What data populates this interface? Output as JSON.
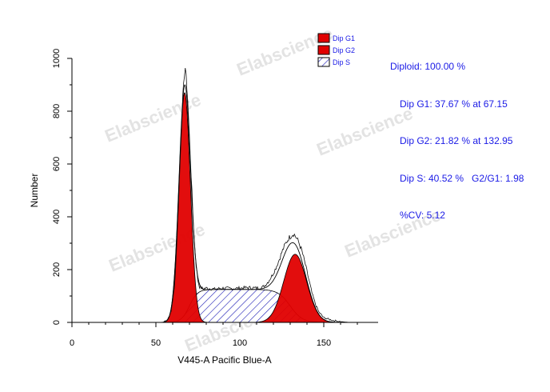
{
  "watermark": "Elabscience",
  "stats": {
    "diploid": "Diploid: 100.00 %",
    "g1": "Dip G1: 37.67 % at 67.15",
    "g2": "Dip G2: 21.82 % at 132.95",
    "s": "Dip S: 40.52 %   G2/G1: 1.98",
    "cv": "%CV: 5.12"
  },
  "colors": {
    "g1": "#e00000",
    "g2": "#e00000",
    "s_hatch": "#1a1ab4",
    "text": "#1a1ae6"
  },
  "chart_data": {
    "type": "area",
    "xlabel": "V445-A Pacific Blue-A",
    "ylabel": "Number",
    "xlim": [
      0,
      180
    ],
    "ylim": [
      0,
      1000
    ],
    "xticks": [
      0,
      50,
      100,
      150
    ],
    "yticks": [
      0,
      200,
      400,
      600,
      800,
      1000
    ],
    "legend": [
      {
        "name": "Dip G1",
        "style": "solid-red"
      },
      {
        "name": "Dip G2",
        "style": "solid-red"
      },
      {
        "name": "Dip S",
        "style": "hatched-blue"
      }
    ],
    "legend_position": "top-right",
    "models": {
      "g1": {
        "mean": 67.15,
        "sd": 3.4,
        "peak": 870
      },
      "g2": {
        "mean": 132.95,
        "sd": 6.8,
        "peak": 258
      },
      "s": {
        "from": 70.0,
        "to": 130.0,
        "height": 125
      }
    },
    "histogram": [
      [
        55,
        4
      ],
      [
        57,
        12
      ],
      [
        59,
        40
      ],
      [
        61,
        130
      ],
      [
        62,
        240
      ],
      [
        63,
        380
      ],
      [
        64,
        540
      ],
      [
        65,
        700
      ],
      [
        66,
        850
      ],
      [
        67,
        940
      ],
      [
        67.5,
        965
      ],
      [
        68,
        930
      ],
      [
        69,
        840
      ],
      [
        70,
        700
      ],
      [
        71,
        560
      ],
      [
        72,
        420
      ],
      [
        73,
        300
      ],
      [
        74,
        215
      ],
      [
        75,
        160
      ],
      [
        76,
        135
      ],
      [
        78,
        128
      ],
      [
        80,
        130
      ],
      [
        85,
        126
      ],
      [
        90,
        130
      ],
      [
        95,
        128
      ],
      [
        100,
        130
      ],
      [
        105,
        132
      ],
      [
        110,
        130
      ],
      [
        113,
        132
      ],
      [
        115,
        140
      ],
      [
        117,
        155
      ],
      [
        119,
        175
      ],
      [
        121,
        200
      ],
      [
        123,
        230
      ],
      [
        125,
        265
      ],
      [
        127,
        295
      ],
      [
        129,
        318
      ],
      [
        131,
        332
      ],
      [
        132,
        336
      ],
      [
        133,
        328
      ],
      [
        135,
        305
      ],
      [
        137,
        270
      ],
      [
        139,
        220
      ],
      [
        141,
        165
      ],
      [
        143,
        110
      ],
      [
        145,
        70
      ],
      [
        147,
        40
      ],
      [
        150,
        18
      ],
      [
        155,
        8
      ],
      [
        160,
        3
      ],
      [
        165,
        0
      ]
    ]
  }
}
